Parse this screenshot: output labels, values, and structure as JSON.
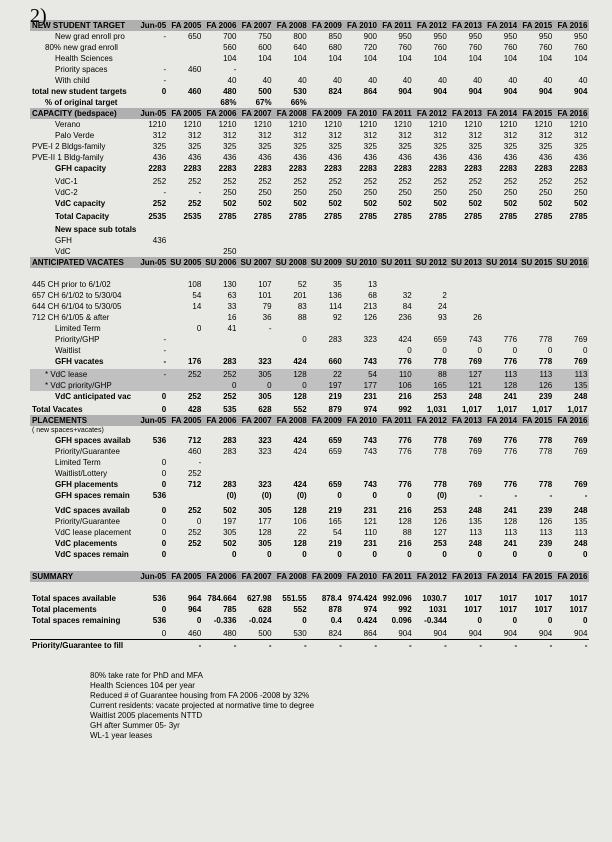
{
  "handwritten": "2)",
  "years": [
    "Jun-05",
    "FA 2005",
    "FA 2006",
    "FA 2007",
    "FA 2008",
    "FA 2009",
    "FA 2010",
    "FA 2011",
    "FA 2012",
    "FA 2013",
    "FA 2014",
    "FA 2015",
    "FA 2016"
  ],
  "new_student_target": {
    "title": "NEW STUDENT TARGET",
    "rows": [
      {
        "label": "New grad enroll pro",
        "indent": 2,
        "v": [
          "-",
          "650",
          "700",
          "750",
          "800",
          "850",
          "900",
          "950",
          "950",
          "950",
          "950",
          "950",
          "950"
        ]
      },
      {
        "label": "80%    new grad enroll",
        "indent": 1,
        "v": [
          "",
          "",
          "560",
          "600",
          "640",
          "680",
          "720",
          "760",
          "760",
          "760",
          "760",
          "760",
          "760"
        ]
      },
      {
        "label": "Health Sciences",
        "indent": 2,
        "v": [
          "",
          "",
          "104",
          "104",
          "104",
          "104",
          "104",
          "104",
          "104",
          "104",
          "104",
          "104",
          "104"
        ]
      },
      {
        "label": "Priority spaces",
        "indent": 2,
        "v": [
          "-",
          "460",
          "-",
          "",
          "",
          "",
          "",
          "",
          "",
          "",
          "",
          "",
          ""
        ]
      },
      {
        "label": "With child",
        "indent": 2,
        "v": [
          "-",
          "",
          "40",
          "40",
          "40",
          "40",
          "40",
          "40",
          "40",
          "40",
          "40",
          "40",
          "40"
        ]
      },
      {
        "label": "total new student targets",
        "indent": 0,
        "bold": true,
        "v": [
          "0",
          "460",
          "480",
          "500",
          "530",
          "824",
          "864",
          "904",
          "904",
          "904",
          "904",
          "904",
          "904"
        ]
      },
      {
        "label": "% of original target",
        "indent": 1,
        "bold": true,
        "v": [
          "",
          "",
          "68%",
          "67%",
          "66%",
          "",
          "",
          "",
          "",
          "",
          "",
          "",
          ""
        ]
      }
    ]
  },
  "capacity": {
    "title": "CAPACITY (bedspace)",
    "rows": [
      {
        "label": "Verano",
        "indent": 2,
        "v": [
          "1210",
          "1210",
          "1210",
          "1210",
          "1210",
          "1210",
          "1210",
          "1210",
          "1210",
          "1210",
          "1210",
          "1210",
          "1210"
        ]
      },
      {
        "label": "Palo Verde",
        "indent": 2,
        "v": [
          "312",
          "312",
          "312",
          "312",
          "312",
          "312",
          "312",
          "312",
          "312",
          "312",
          "312",
          "312",
          "312"
        ]
      },
      {
        "label": "PVE-I   2 Bldgs-family",
        "indent": 0,
        "v": [
          "325",
          "325",
          "325",
          "325",
          "325",
          "325",
          "325",
          "325",
          "325",
          "325",
          "325",
          "325",
          "325"
        ]
      },
      {
        "label": "PVE-II  1 Bldg-family",
        "indent": 0,
        "v": [
          "436",
          "436",
          "436",
          "436",
          "436",
          "436",
          "436",
          "436",
          "436",
          "436",
          "436",
          "436",
          "436"
        ]
      },
      {
        "label": "GFH capacity",
        "indent": 2,
        "bold": true,
        "v": [
          "2283",
          "2283",
          "2283",
          "2283",
          "2283",
          "2283",
          "2283",
          "2283",
          "2283",
          "2283",
          "2283",
          "2283",
          "2283"
        ]
      },
      {
        "label": "",
        "v": []
      },
      {
        "label": "VdC-1",
        "indent": 2,
        "v": [
          "252",
          "252",
          "252",
          "252",
          "252",
          "252",
          "252",
          "252",
          "252",
          "252",
          "252",
          "252",
          "252"
        ]
      },
      {
        "label": "VdC-2",
        "indent": 2,
        "v": [
          "-",
          "-",
          "250",
          "250",
          "250",
          "250",
          "250",
          "250",
          "250",
          "250",
          "250",
          "250",
          "250"
        ]
      },
      {
        "label": "VdC capacity",
        "indent": 2,
        "bold": true,
        "v": [
          "252",
          "252",
          "502",
          "502",
          "502",
          "502",
          "502",
          "502",
          "502",
          "502",
          "502",
          "502",
          "502"
        ]
      },
      {
        "label": "",
        "v": []
      },
      {
        "label": "Total Capacity",
        "indent": 2,
        "bold": true,
        "v": [
          "2535",
          "2535",
          "2785",
          "2785",
          "2785",
          "2785",
          "2785",
          "2785",
          "2785",
          "2785",
          "2785",
          "2785",
          "2785"
        ]
      },
      {
        "label": "",
        "v": []
      },
      {
        "label": "New space sub totals",
        "indent": 2,
        "bold": true,
        "v": []
      },
      {
        "label": "GFH",
        "indent": 2,
        "v": [
          "436",
          "",
          "",
          "",
          "",
          "",
          "",
          "",
          "",
          "",
          "",
          "",
          ""
        ]
      },
      {
        "label": "VdC",
        "indent": 2,
        "v": [
          "",
          "",
          "250",
          "",
          "",
          "",
          "",
          "",
          "",
          "",
          "",
          "",
          ""
        ]
      }
    ]
  },
  "anticipated_vacates": {
    "title": "ANTICIPATED VACATES",
    "years": [
      "Jun-05",
      "SU 2005",
      "SU 2006",
      "SU 2007",
      "SU 2008",
      "SU 2009",
      "SU 2010",
      "SU 2011",
      "SU 2012",
      "SU 2013",
      "SU 2014",
      "SU 2015",
      "SU 2016"
    ],
    "rows": [
      {
        "label": "445 CH prior to 6/1/02",
        "indent": 0,
        "v": [
          "",
          "108",
          "130",
          "107",
          "52",
          "35",
          "13",
          "",
          "",
          "",
          "",
          "",
          ""
        ]
      },
      {
        "label": "657 CH 6/1/02 to 5/30/04",
        "indent": 0,
        "v": [
          "",
          "54",
          "63",
          "101",
          "201",
          "136",
          "68",
          "32",
          "2",
          "",
          "",
          "",
          ""
        ]
      },
      {
        "label": "644 CH 6/1/04 to 5/30/05",
        "indent": 0,
        "v": [
          "",
          "14",
          "33",
          "79",
          "83",
          "114",
          "213",
          "84",
          "24",
          "",
          "",
          "",
          ""
        ]
      },
      {
        "label": "712 CH 6/1/05 & after",
        "indent": 0,
        "v": [
          "",
          "",
          "16",
          "36",
          "88",
          "92",
          "126",
          "236",
          "93",
          "26",
          "",
          "",
          ""
        ]
      },
      {
        "label": "Limited Term",
        "indent": 2,
        "v": [
          "",
          "0",
          "41",
          "-",
          "",
          "",
          "",
          "",
          "",
          "",
          "",
          "",
          ""
        ]
      },
      {
        "label": "Priority/GHP",
        "indent": 2,
        "v": [
          "-",
          "",
          "",
          "",
          "0",
          "283",
          "323",
          "424",
          "659",
          "743",
          "776",
          "778",
          "769"
        ]
      },
      {
        "label": "Waitlist",
        "indent": 2,
        "v": [
          "-",
          "",
          "",
          "",
          "",
          "",
          "",
          "0",
          "0",
          "0",
          "0",
          "0",
          "0"
        ]
      },
      {
        "label": "GFH vacates",
        "indent": 2,
        "bold": true,
        "v": [
          "-",
          "176",
          "283",
          "323",
          "424",
          "660",
          "743",
          "776",
          "778",
          "769",
          "776",
          "778",
          "769"
        ]
      },
      {
        "label": "",
        "v": []
      },
      {
        "label": "* VdC lease",
        "indent": 1,
        "shaded": true,
        "v": [
          "-",
          "252",
          "252",
          "305",
          "128",
          "22",
          "54",
          "110",
          "88",
          "127",
          "113",
          "113",
          "113"
        ]
      },
      {
        "label": "* VdC priority/GHP",
        "indent": 1,
        "shaded": true,
        "v": [
          "",
          "",
          "0",
          "0",
          "0",
          "197",
          "177",
          "106",
          "165",
          "121",
          "128",
          "126",
          "135"
        ]
      },
      {
        "label": "VdC anticipated vac",
        "indent": 2,
        "bold": true,
        "v": [
          "0",
          "252",
          "252",
          "305",
          "128",
          "219",
          "231",
          "216",
          "253",
          "248",
          "241",
          "239",
          "248"
        ]
      },
      {
        "label": "",
        "v": []
      },
      {
        "label": "Total Vacates",
        "indent": 0,
        "bold": true,
        "v": [
          "0",
          "428",
          "535",
          "628",
          "552",
          "879",
          "974",
          "992",
          "1,031",
          "1,017",
          "1,017",
          "1,017",
          "1,017"
        ]
      }
    ]
  },
  "placements": {
    "title": "PLACEMENTS",
    "subtitle": "( new spaces+vacates)",
    "rows": [
      {
        "label": "GFH spaces availab",
        "indent": 2,
        "bold": true,
        "v": [
          "536",
          "712",
          "283",
          "323",
          "424",
          "659",
          "743",
          "776",
          "778",
          "769",
          "776",
          "778",
          "769"
        ]
      },
      {
        "label": "Priority/Guarantee",
        "indent": 2,
        "v": [
          "",
          "460",
          "283",
          "323",
          "424",
          "659",
          "743",
          "776",
          "778",
          "769",
          "776",
          "778",
          "769"
        ]
      },
      {
        "label": "Limited Term",
        "indent": 2,
        "v": [
          "0",
          "-",
          "",
          "",
          "",
          "",
          "",
          "",
          "",
          "",
          "",
          "",
          ""
        ]
      },
      {
        "label": "Waitlist/Lottery",
        "indent": 2,
        "v": [
          "0",
          "252",
          "",
          "",
          "",
          "",
          "",
          "",
          "",
          "",
          "",
          "",
          ""
        ]
      },
      {
        "label": "GFH placements",
        "indent": 2,
        "bold": true,
        "v": [
          "0",
          "712",
          "283",
          "323",
          "424",
          "659",
          "743",
          "776",
          "778",
          "769",
          "776",
          "778",
          "769"
        ]
      },
      {
        "label": "GFH spaces remain",
        "indent": 2,
        "bold": true,
        "v": [
          "536",
          "",
          "(0)",
          "(0)",
          "(0)",
          "0",
          "0",
          "0",
          "(0)",
          "-",
          "-",
          "-",
          "-"
        ]
      },
      {
        "label": "",
        "v": []
      },
      {
        "label": "",
        "v": []
      },
      {
        "label": "VdC spaces availab",
        "indent": 2,
        "bold": true,
        "v": [
          "0",
          "252",
          "502",
          "305",
          "128",
          "219",
          "231",
          "216",
          "253",
          "248",
          "241",
          "239",
          "248"
        ]
      },
      {
        "label": "Priority/Guarantee",
        "indent": 2,
        "v": [
          "0",
          "0",
          "197",
          "177",
          "106",
          "165",
          "121",
          "128",
          "126",
          "135",
          "128",
          "126",
          "135"
        ]
      },
      {
        "label": "VdC lease placement",
        "indent": 2,
        "v": [
          "0",
          "252",
          "305",
          "128",
          "22",
          "54",
          "110",
          "88",
          "127",
          "113",
          "113",
          "113",
          "113"
        ]
      },
      {
        "label": "VdC placements",
        "indent": 2,
        "bold": true,
        "v": [
          "0",
          "252",
          "502",
          "305",
          "128",
          "219",
          "231",
          "216",
          "253",
          "248",
          "241",
          "239",
          "248"
        ]
      },
      {
        "label": "VdC spaces remain",
        "indent": 2,
        "bold": true,
        "v": [
          "0",
          "",
          "0",
          "0",
          "0",
          "0",
          "0",
          "0",
          "0",
          "0",
          "0",
          "0",
          "0"
        ]
      }
    ]
  },
  "summary": {
    "title": "SUMMARY",
    "rows": [
      {
        "label": "Total spaces available",
        "indent": 0,
        "bold": true,
        "v": [
          "536",
          "964",
          "784.664",
          "627.98",
          "551.55",
          "878.4",
          "974.424",
          "992.096",
          "1030.7",
          "1017",
          "1017",
          "1017",
          "1017"
        ]
      },
      {
        "label": "Total placements",
        "indent": 0,
        "bold": true,
        "v": [
          "0",
          "964",
          "785",
          "628",
          "552",
          "878",
          "974",
          "992",
          "1031",
          "1017",
          "1017",
          "1017",
          "1017"
        ]
      },
      {
        "label": "Total spaces remaining",
        "indent": 0,
        "bold": true,
        "v": [
          "536",
          "0",
          "-0.336",
          "-0.024",
          "0",
          "0.4",
          "0.424",
          "0.096",
          "-0.344",
          "0",
          "0",
          "0",
          "0"
        ]
      },
      {
        "label": "",
        "v": []
      },
      {
        "label": "",
        "indent": 0,
        "v": [
          "0",
          "460",
          "480",
          "500",
          "530",
          "824",
          "864",
          "904",
          "904",
          "904",
          "904",
          "904",
          "904"
        ]
      },
      {
        "label": "Priority/Guarantee to fill",
        "indent": 0,
        "bold": true,
        "underline": true,
        "v": [
          "",
          "-",
          "-",
          "-",
          "-",
          "-",
          "-",
          "-",
          "-",
          "-",
          "-",
          "-",
          "-"
        ]
      }
    ]
  },
  "footnotes": [
    "80% take rate for PhD and MFA",
    "Health Sciences 104 per year",
    "Reduced # of Guarantee housing from FA 2006 -2008 by 32%",
    "Current residents: vacate projected at normative time to degree",
    "Waitlist 2005 placements NTTD",
    "GH after Summer 05- 3yr",
    "WL-1 year leases"
  ]
}
